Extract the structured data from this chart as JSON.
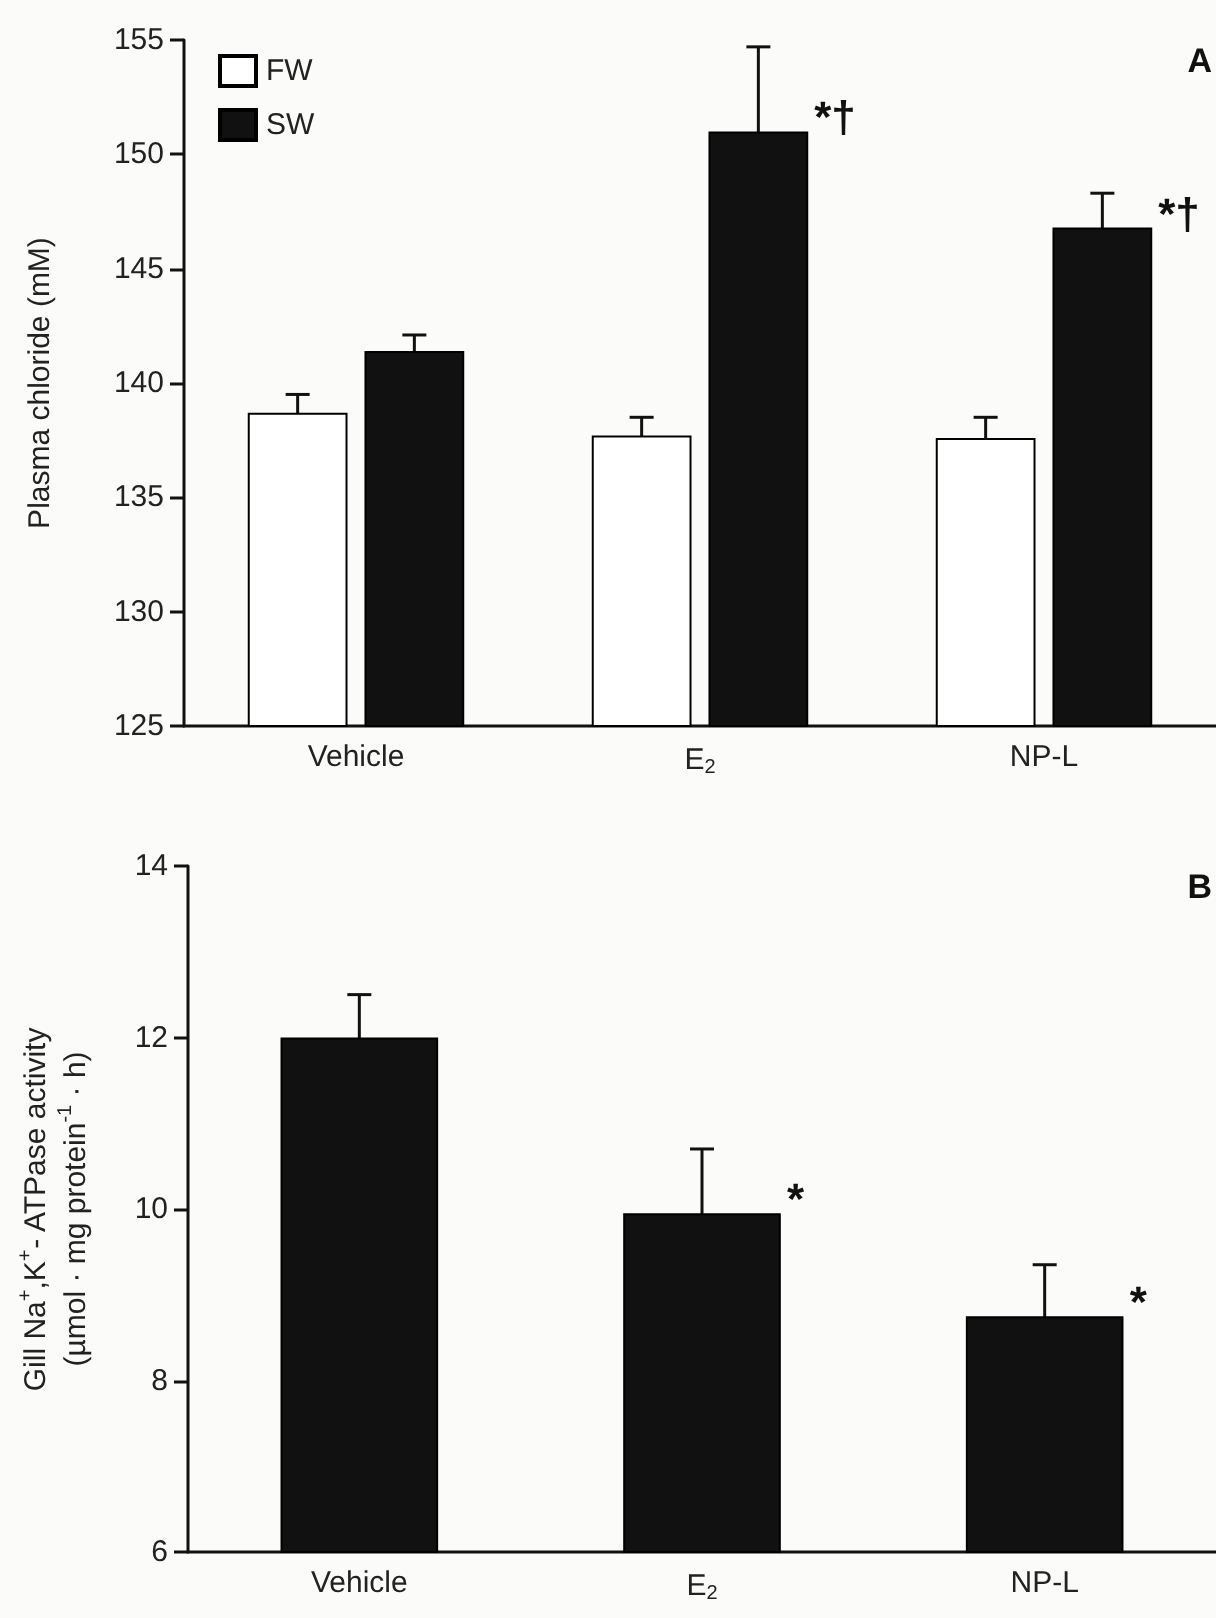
{
  "chart_data": [
    {
      "type": "bar",
      "ylabel": "Plasma chloride (mM)",
      "categories": [
        "Vehicle",
        "E$_{2}$",
        "NP-L"
      ],
      "series": [
        {
          "name": "FW",
          "color": "#ffffff",
          "values": [
            138.7,
            137.7,
            137.6
          ],
          "errors": [
            0.8,
            0.8,
            0.9
          ]
        },
        {
          "name": "SW",
          "color": "#111111",
          "values": [
            141.4,
            151.0,
            146.8
          ],
          "errors": [
            0.7,
            3.7,
            1.5
          ]
        }
      ],
      "ylim": [
        125,
        155
      ],
      "yticks": [
        125,
        130,
        135,
        140,
        145,
        150,
        155
      ],
      "grid": false,
      "legend": "top left",
      "annotations": [
        "A",
        {
          "text": "*†",
          "x": "E$_{2}$",
          "y": 151.0
        },
        {
          "text": "*†",
          "x": "NP-L",
          "y": 146.8
        }
      ]
    },
    {
      "type": "bar",
      "ylabel": "Gill Na$^{+}$,K$^{+}$- ATPase activity\n(µmol · mg protein$^{-1}$ · h)",
      "categories": [
        "Vehicle",
        "E$_{2}$",
        "NP-L"
      ],
      "series": [
        {
          "color": "#111111",
          "values": [
            12.0,
            9.95,
            8.75
          ],
          "errors": [
            0.5,
            0.75,
            0.6
          ]
        }
      ],
      "ylim": [
        6,
        14
      ],
      "yticks": [
        6,
        8,
        10,
        12,
        14
      ],
      "grid": false,
      "legend": false,
      "annotations": [
        "B",
        {
          "text": "*",
          "x": "E$_{2}$",
          "y": 9.95
        },
        {
          "text": "*",
          "x": "NP-L",
          "y": 8.75
        }
      ]
    }
  ]
}
